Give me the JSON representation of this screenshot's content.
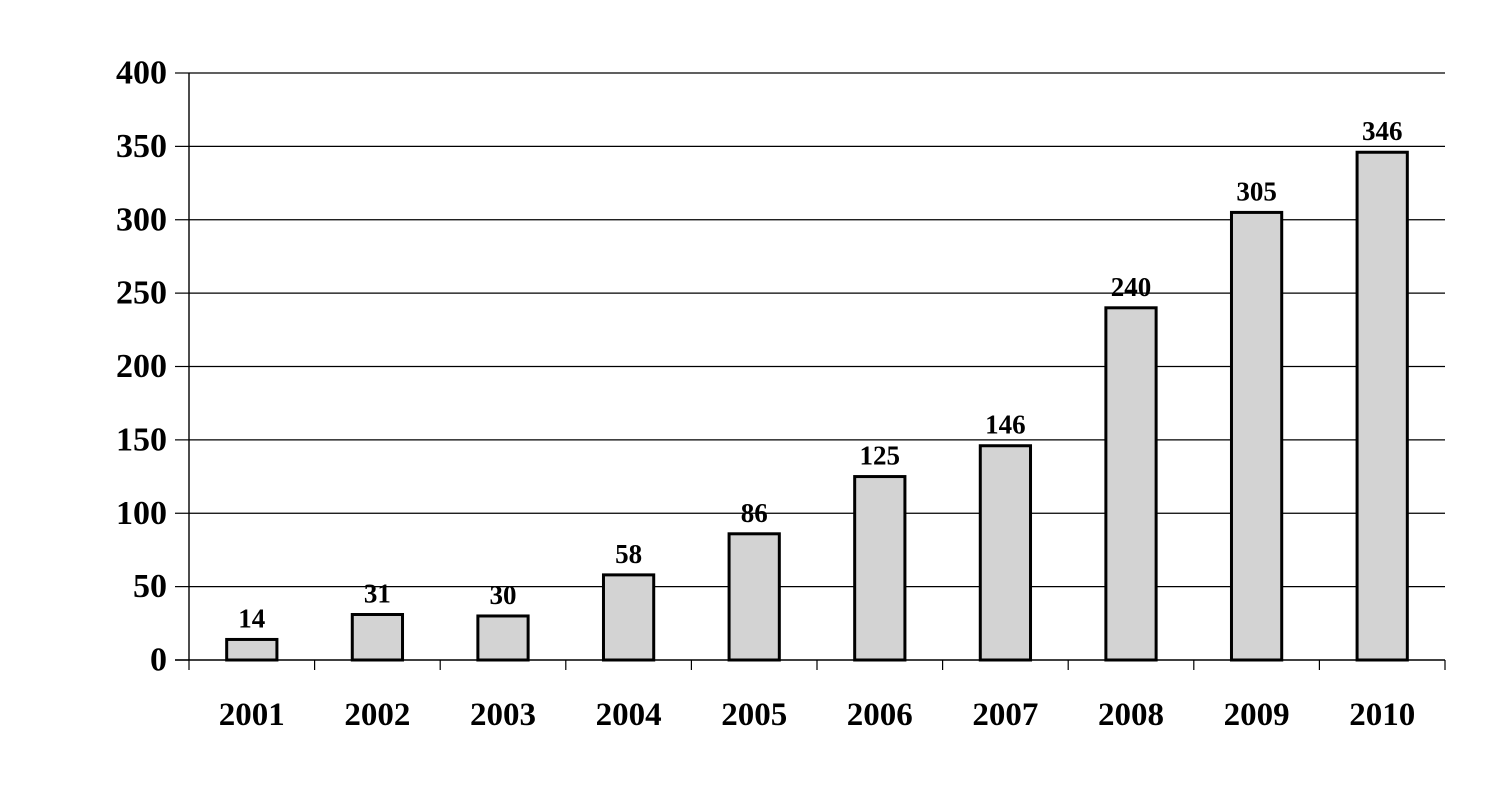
{
  "chart_data": {
    "type": "bar",
    "categories": [
      "2001",
      "2002",
      "2003",
      "2004",
      "2005",
      "2006",
      "2007",
      "2008",
      "2009",
      "2010"
    ],
    "values": [
      14,
      31,
      30,
      58,
      86,
      125,
      146,
      240,
      305,
      346
    ],
    "data_labels": [
      "14",
      "31",
      "30",
      "58",
      "86",
      "125",
      "146",
      "240",
      "305",
      "346"
    ],
    "y_ticks": [
      0,
      50,
      100,
      150,
      200,
      250,
      300,
      350,
      400
    ],
    "y_tick_labels": [
      "0",
      "50",
      "100",
      "150",
      "200",
      "250",
      "300",
      "350",
      "400"
    ],
    "ylim": [
      0,
      400
    ],
    "grid": true,
    "legend": "none",
    "title": "",
    "xlabel": "",
    "ylabel": ""
  },
  "colors": {
    "bar_fill": "#d3d3d3",
    "bar_stroke": "#000000",
    "grid": "#000000",
    "axis": "#000000"
  }
}
